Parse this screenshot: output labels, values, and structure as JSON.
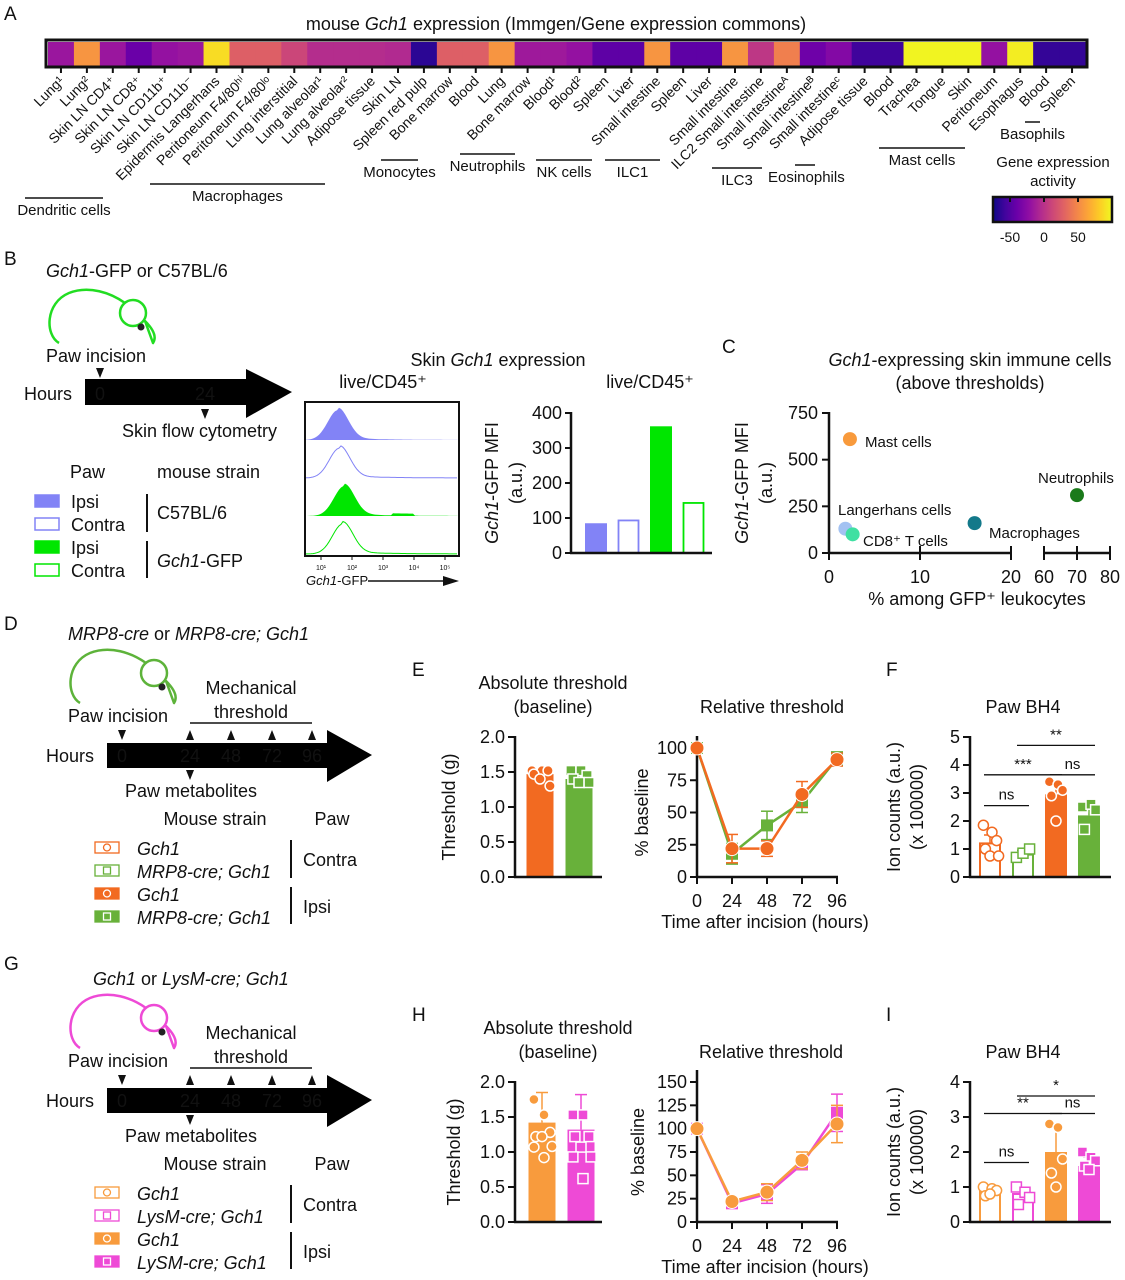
{
  "panel_letters": [
    "A",
    "B",
    "C",
    "D",
    "E",
    "F",
    "G",
    "H",
    "I"
  ],
  "schematics": {
    "B": {
      "strain_title": [
        {
          "t": "Gch1",
          "i": true
        },
        {
          "t": "-GFP or C57BL/6"
        }
      ],
      "mouse_color": "#22dd22",
      "incision_label": "Paw incision",
      "hours_label": "Hours",
      "timepoints": [
        "0",
        "24"
      ],
      "below_label": "Skin flow cytometry",
      "legend_headers": [
        "Paw",
        "mouse strain"
      ],
      "legend": [
        {
          "paw": "Ipsi",
          "filled": true,
          "color": "#8283f6"
        },
        {
          "paw": "Contra",
          "filled": false,
          "color": "#8283f6"
        },
        {
          "paw": "Ipsi",
          "filled": true,
          "color": "#00e600"
        },
        {
          "paw": "Contra",
          "filled": false,
          "color": "#00e600"
        }
      ],
      "strains": [
        [
          {
            "t": "C57BL/6"
          }
        ],
        [
          {
            "t": "Gch1",
            "i": true
          },
          {
            "t": "-GFP"
          }
        ]
      ]
    },
    "D": {
      "strain_title": [
        {
          "t": "MRP8-cre",
          "i": true
        },
        {
          "t": " or "
        },
        {
          "t": "MRP8-cre; Gch1",
          "i": true
        }
      ],
      "mouse_color": "#5db33a",
      "incision_label": "Paw incision",
      "hours_label": "Hours",
      "timepoints": [
        "0",
        "24",
        "48",
        "72",
        "96"
      ],
      "above_label": [
        "Mechanical",
        "threshold"
      ],
      "below_label": "Paw metabolites",
      "legend_headers": [
        "Mouse strain",
        "Paw"
      ],
      "legend": [
        {
          "strain": "Gch1",
          "filled": false,
          "color": "#f26a21",
          "marker": "circle"
        },
        {
          "strain": "MRP8-cre; Gch1",
          "filled": false,
          "color": "#68b13a",
          "marker": "square"
        },
        {
          "strain": "Gch1",
          "filled": true,
          "color": "#f26a21",
          "marker": "circle"
        },
        {
          "strain": "MRP8-cre; Gch1",
          "filled": true,
          "color": "#68b13a",
          "marker": "square"
        }
      ],
      "paw_groups": [
        "Contra",
        "Ipsi"
      ]
    },
    "G": {
      "strain_title": [
        {
          "t": "Gch1",
          "i": true
        },
        {
          "t": " or "
        },
        {
          "t": "LysM-cre; Gch1",
          "i": true
        }
      ],
      "mouse_color": "#ee4ad6",
      "incision_label": "Paw incision",
      "hours_label": "Hours",
      "timepoints": [
        "0",
        "24",
        "48",
        "72",
        "96"
      ],
      "above_label": [
        "Mechanical",
        "threshold"
      ],
      "below_label": "Paw metabolites",
      "legend_headers": [
        "Mouse strain",
        "Paw"
      ],
      "legend": [
        {
          "strain": "Gch1",
          "filled": false,
          "color": "#f89b3d",
          "marker": "circle"
        },
        {
          "strain": "LysM-cre; Gch1",
          "filled": false,
          "color": "#ee4ad6",
          "marker": "square"
        },
        {
          "strain": "Gch1",
          "filled": true,
          "color": "#f89b3d",
          "marker": "circle"
        },
        {
          "strain": "LySM-cre; Gch1",
          "filled": true,
          "color": "#ee4ad6",
          "marker": "square"
        }
      ],
      "paw_groups": [
        "Contra",
        "Ipsi"
      ]
    }
  },
  "chart_data": [
    {
      "type": "heatmap",
      "title": [
        {
          "t": "mouse "
        },
        {
          "t": "Gch1",
          "i": true
        },
        {
          "t": " expression (Immgen/Gene expression commons)"
        }
      ],
      "colormap": "plasma",
      "categories": [
        "Lung¹",
        "Lung²",
        "Skin LN CD4⁺",
        "Skin LN CD8⁺",
        "Skin LN CD11b⁺",
        "Skin LN CD11b⁻",
        "Epidermis Langerhans",
        "Peritoneum F4/80ʰⁱ",
        "Peritoneum F4/80ˡᵒ",
        "Lung interstitial",
        "Lung alveolar¹",
        "Lung alveolar²",
        "Adipose tissue",
        "Skin LN",
        "Spleen red pulp",
        "Bone marrow",
        "Blood",
        "Lung",
        "Bone marrow",
        "Blood¹",
        "Blood²",
        "Spleen",
        "Liver",
        "Small intestine",
        "Spleen",
        "Liver",
        "Small intestine",
        "ILC2 Small intestine",
        "Small intestineᴬ",
        "Small intestineᴮ",
        "Small intestineᶜ",
        "Adipose tissue",
        "Blood",
        "Trachea",
        "Tongue",
        "Skin",
        "Peritoneum",
        "Esophagus",
        "Blood",
        "Spleen"
      ],
      "values": [
        -17,
        56,
        -17,
        -40,
        -20,
        -17,
        88,
        27,
        27,
        12,
        -3,
        -3,
        -3,
        -5,
        -65,
        27,
        27,
        56,
        -15,
        -15,
        -20,
        -45,
        -45,
        56,
        -45,
        -45,
        56,
        3,
        45,
        -38,
        -28,
        -58,
        -58,
        98,
        98,
        98,
        -20,
        95,
        -62,
        -62
      ],
      "groups": [
        "Dendritic cells",
        "Macrophages",
        "Monocytes",
        "Neutrophils",
        "NK cells",
        "ILC1",
        "ILC3",
        "Eosinophils",
        "Mast cells",
        "Basophils"
      ],
      "colorbar": {
        "title": [
          "Gene expression",
          "activity"
        ],
        "tick_labels": [
          "-50",
          "0",
          "50"
        ],
        "range": [
          -75,
          100
        ]
      }
    },
    {
      "type": "histogram",
      "title": "live/CD45⁺",
      "xlabel": [
        {
          "t": "Gch1",
          "i": true
        },
        {
          "t": "-GFP"
        }
      ],
      "xtick_labels": [
        "10¹",
        "10²",
        "10³",
        "10⁴",
        "10⁵"
      ],
      "x_scale": "log",
      "series": [
        {
          "paw": "Ipsi",
          "strain": "C57BL/6",
          "peak_log10": 1.55,
          "filled": true,
          "color": "#8283f6"
        },
        {
          "paw": "Contra",
          "strain": "C57BL/6",
          "peak_log10": 1.6,
          "filled": false,
          "color": "#8283f6"
        },
        {
          "paw": "Ipsi",
          "strain": "Gch1-GFP",
          "peak_log10": 1.75,
          "filled": true,
          "color": "#00e600"
        },
        {
          "paw": "Contra",
          "strain": "Gch1-GFP",
          "peak_log10": 1.7,
          "filled": false,
          "color": "#00e600"
        }
      ]
    },
    {
      "type": "bar",
      "supertitle": [
        {
          "t": "Skin "
        },
        {
          "t": "Gch1",
          "i": true
        },
        {
          "t": " expression"
        }
      ],
      "title": "live/CD45⁺",
      "ylabel": [
        [
          {
            "t": "Gch1",
            "i": true
          },
          {
            "t": "-GFP MFI"
          }
        ],
        [
          {
            "t": "(a.u.)"
          }
        ]
      ],
      "ylim": [
        0,
        400
      ],
      "ytick_labels": [
        "0",
        "100",
        "200",
        "300",
        "400"
      ],
      "values": [
        85,
        93,
        362,
        143
      ],
      "filled": [
        true,
        false,
        true,
        false
      ],
      "colors": [
        "#8283f6",
        "#8283f6",
        "#00e600",
        "#00e600"
      ]
    },
    {
      "type": "scatter",
      "title": [
        [
          {
            "t": "Gch1",
            "i": true
          },
          {
            "t": "-expressing skin immune cells"
          }
        ],
        [
          {
            "t": "(above thresholds)"
          }
        ]
      ],
      "ylabel": [
        [
          {
            "t": "Gch1",
            "i": true
          },
          {
            "t": "-GFP MFI"
          }
        ],
        [
          {
            "t": "(a.u.)"
          }
        ]
      ],
      "xlabel": "% among GFP⁺ leukocytes",
      "ylim": [
        0,
        750
      ],
      "ytick_labels": [
        "0",
        "250",
        "500",
        "750"
      ],
      "x_broken_axis": [
        [
          0,
          20
        ],
        [
          60,
          80
        ]
      ],
      "xtick_labels": [
        "0",
        "10",
        "20",
        "60",
        "70",
        "80"
      ],
      "points": [
        {
          "label": "Mast cells",
          "x": 2.3,
          "y": 610,
          "color": "#f89a3c"
        },
        {
          "label": "Neutrophils",
          "x": 70,
          "y": 310,
          "color": "#1a7a1a"
        },
        {
          "label": "Langerhans cells",
          "x": 1.8,
          "y": 130,
          "color": "#a3c2f2"
        },
        {
          "label": "CD8⁺ T cells",
          "x": 2.6,
          "y": 100,
          "color": "#3fe0a2"
        },
        {
          "label": "Macrophages",
          "x": 16,
          "y": 160,
          "color": "#13798a"
        }
      ]
    },
    {
      "type": "bar",
      "title": [
        "Absolute threshold",
        "(baseline)"
      ],
      "ylabel": "Threshold (g)",
      "ylim": [
        0,
        2
      ],
      "ytick_labels": [
        "0.0",
        "0.5",
        "1.0",
        "1.5",
        "2.0"
      ],
      "values": [
        1.47,
        1.4
      ],
      "errors": [
        0.06,
        0.08
      ],
      "filled": [
        true,
        true
      ],
      "markers": [
        "circle",
        "square"
      ],
      "colors": [
        "#f26a21",
        "#68b13a"
      ],
      "points": [
        [
          1.52,
          1.52,
          1.52,
          1.47,
          1.4,
          1.3
        ],
        [
          1.52,
          1.52,
          1.45,
          1.4,
          1.35,
          1.35
        ]
      ]
    },
    {
      "type": "line",
      "title": "Relative threshold",
      "xlabel": "Time after incision (hours)",
      "ylabel": "% baseline",
      "x": [
        0,
        24,
        48,
        72,
        96
      ],
      "xtick_labels": [
        "0",
        "24",
        "48",
        "72",
        "96"
      ],
      "ylim": [
        0,
        100
      ],
      "ytick_labels": [
        "0",
        "25",
        "50",
        "75",
        "100"
      ],
      "series": [
        {
          "color": "#68b13a",
          "marker": "square",
          "values": [
            100,
            18,
            40,
            58,
            92
          ],
          "errors": [
            0,
            8,
            11,
            8,
            5
          ]
        },
        {
          "color": "#f26a21",
          "marker": "circle",
          "values": [
            100,
            22,
            22,
            64,
            91
          ],
          "errors": [
            0,
            11,
            6,
            10,
            5
          ]
        }
      ]
    },
    {
      "type": "bar",
      "title": "Paw BH4",
      "ylabel": [
        "Ion counts (a.u.)",
        "(x 100000)"
      ],
      "ylim": [
        0,
        5
      ],
      "ytick_labels": [
        "0",
        "1",
        "2",
        "3",
        "4",
        "5"
      ],
      "values": [
        1.2,
        0.8,
        2.95,
        2.2
      ],
      "errors": [
        0.3,
        0.15,
        0.45,
        0.4
      ],
      "filled": [
        false,
        false,
        true,
        true
      ],
      "markers": [
        "circle",
        "square",
        "circle",
        "square"
      ],
      "colors": [
        "#f26a21",
        "#68b13a",
        "#f26a21",
        "#68b13a"
      ],
      "points": [
        [
          1.85,
          1.6,
          1.3,
          1.0,
          0.75,
          0.75
        ],
        [
          0.7,
          0.85,
          1.0
        ],
        [
          3.4,
          3.3,
          3.1,
          2.9,
          2.0
        ],
        [
          2.5,
          2.6,
          2.4,
          1.7
        ]
      ],
      "significance": [
        {
          "from": 0,
          "to": 1,
          "y": 2.55,
          "label": "ns"
        },
        {
          "from": 0,
          "to": 2,
          "y": 3.65,
          "label": "***"
        },
        {
          "from": 2,
          "to": 3,
          "y": 3.65,
          "label": "ns"
        },
        {
          "from": 1,
          "to": 3,
          "y": 4.7,
          "label": "**"
        }
      ]
    },
    {
      "type": "bar",
      "title": [
        "Absolute threshold",
        "(baseline)"
      ],
      "ylabel": "Threshold (g)",
      "ylim": [
        0,
        2
      ],
      "ytick_labels": [
        "0.0",
        "0.5",
        "1.0",
        "1.5",
        "2.0"
      ],
      "values": [
        1.42,
        1.32
      ],
      "errors": [
        0.43,
        0.5
      ],
      "filled": [
        true,
        true
      ],
      "markers": [
        "circle",
        "square"
      ],
      "colors": [
        "#f89b3d",
        "#ee4ad6"
      ],
      "points": [
        [
          1.75,
          1.53,
          1.28,
          1.22,
          1.22,
          1.08,
          1.07,
          0.92
        ],
        [
          1.53,
          1.53,
          1.22,
          1.22,
          1.07,
          0.93,
          0.93,
          0.62
        ]
      ]
    },
    {
      "type": "line",
      "title": "Relative threshold",
      "xlabel": "Time after incision (hours)",
      "ylabel": "% baseline",
      "x": [
        0,
        24,
        48,
        72,
        96
      ],
      "xtick_labels": [
        "0",
        "24",
        "48",
        "72",
        "96"
      ],
      "ylim": [
        0,
        150
      ],
      "ytick_labels": [
        "0",
        "25",
        "50",
        "75",
        "100",
        "125",
        "150"
      ],
      "series": [
        {
          "color": "#ee4ad6",
          "marker": "square",
          "values": [
            100,
            20,
            30,
            62,
            117
          ],
          "errors": [
            0,
            3,
            10,
            6,
            20
          ]
        },
        {
          "color": "#f89b3d",
          "marker": "circle",
          "values": [
            100,
            22,
            32,
            66,
            105
          ],
          "errors": [
            0,
            3,
            9,
            9,
            20
          ]
        }
      ]
    },
    {
      "type": "bar",
      "title": "Paw BH4",
      "ylabel": [
        "Ion counts (a.u.)",
        "(x 100000)"
      ],
      "ylim": [
        0,
        4
      ],
      "ytick_labels": [
        "0",
        "1",
        "2",
        "3",
        "4"
      ],
      "values": [
        0.9,
        0.8,
        2.0,
        1.6
      ],
      "errors": [
        0.1,
        0.15,
        0.72,
        0.25
      ],
      "filled": [
        false,
        false,
        true,
        true
      ],
      "markers": [
        "circle",
        "square",
        "circle",
        "square"
      ],
      "colors": [
        "#f89b3d",
        "#ee4ad6",
        "#f89b3d",
        "#ee4ad6"
      ],
      "points": [
        [
          1.0,
          0.95,
          0.9,
          0.75,
          0.8
        ],
        [
          1.0,
          0.85,
          0.7,
          0.5
        ],
        [
          2.8,
          2.7,
          1.8,
          1.4,
          1.0
        ],
        [
          2.0,
          1.85,
          1.75,
          1.6,
          1.5
        ]
      ],
      "significance": [
        {
          "from": 0,
          "to": 1,
          "y": 1.7,
          "label": "ns"
        },
        {
          "from": 0,
          "to": 2,
          "y": 3.1,
          "label": "**"
        },
        {
          "from": 2,
          "to": 3,
          "y": 3.1,
          "label": "ns"
        },
        {
          "from": 1,
          "to": 3,
          "y": 3.6,
          "label": "*"
        }
      ]
    }
  ]
}
